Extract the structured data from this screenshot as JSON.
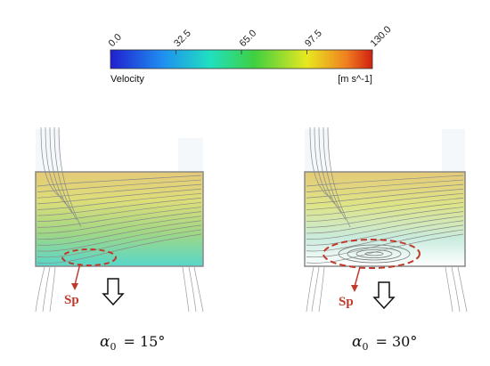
{
  "colorbar": {
    "title": "Velocity",
    "unit": "[m s^-1]",
    "ticks": [
      "0.0",
      "32.5",
      "65.0",
      "97.5",
      "130.0"
    ],
    "colors": [
      "#1f1fd0",
      "#1f8ff0",
      "#20e0c0",
      "#3fd040",
      "#e8e820",
      "#f08020",
      "#d02010"
    ]
  },
  "panels": [
    {
      "marker": "Sp",
      "symbol": "α",
      "subscript": "0",
      "equals": "= 15°"
    },
    {
      "marker": "Sp",
      "symbol": "α",
      "subscript": "0",
      "equals": "= 30°"
    }
  ]
}
